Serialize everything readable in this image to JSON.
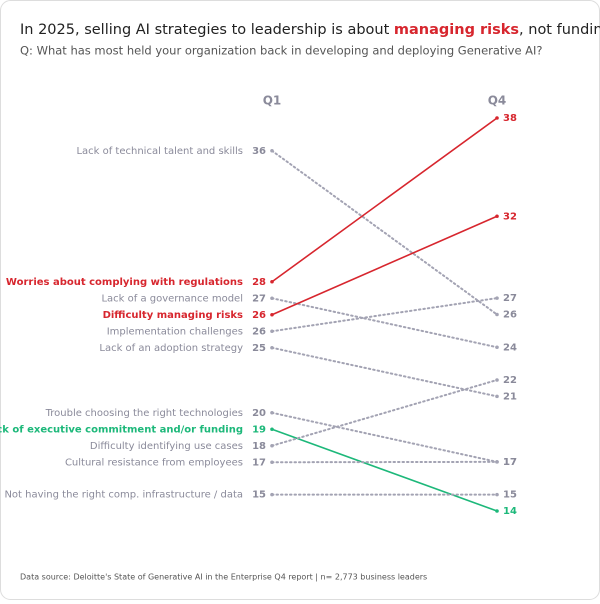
{
  "chart_data": {
    "type": "slope",
    "title": [
      "In 2025, selling AI strategies to leadership is about ",
      "managing risks",
      ", not funding or talent."
    ],
    "title_highlight_color": "#d7262e",
    "subtitle": "Q: What has most held your organization back in developing and deploying Generative AI?",
    "source": "Data source: Deloitte's State of Generative AI in the Enterprise Q4 report | n= 2,773 business leaders",
    "categories": [
      "Lack of technical talent and skills",
      "Worries about complying with regulations",
      "Lack of a governance model",
      "Difficulty managing risks",
      "Implementation challenges",
      "Lack of an adoption strategy",
      "Trouble choosing the right technologies",
      "Lack of executive commitment and/or funding",
      "Difficulty identifying use cases",
      "Cultural resistance from employees",
      "Not having the right comp. infrastructure / data"
    ],
    "colors": [
      "#a3a3b3",
      "#d7262e",
      "#a3a3b3",
      "#d7262e",
      "#a3a3b3",
      "#a3a3b3",
      "#a3a3b3",
      "#1db87a",
      "#a3a3b3",
      "#a3a3b3",
      "#a3a3b3"
    ],
    "highlighted": [
      false,
      true,
      false,
      true,
      false,
      false,
      false,
      true,
      false,
      false,
      false
    ],
    "series": [
      {
        "name": "Q1",
        "values": [
          36,
          28,
          27,
          26,
          26,
          25,
          20,
          19,
          18,
          17,
          15
        ]
      },
      {
        "name": "Q4",
        "values": [
          26,
          38,
          24,
          32,
          27,
          21,
          17,
          14,
          22,
          17,
          15
        ]
      }
    ],
    "ylim": [
      14,
      38
    ]
  }
}
